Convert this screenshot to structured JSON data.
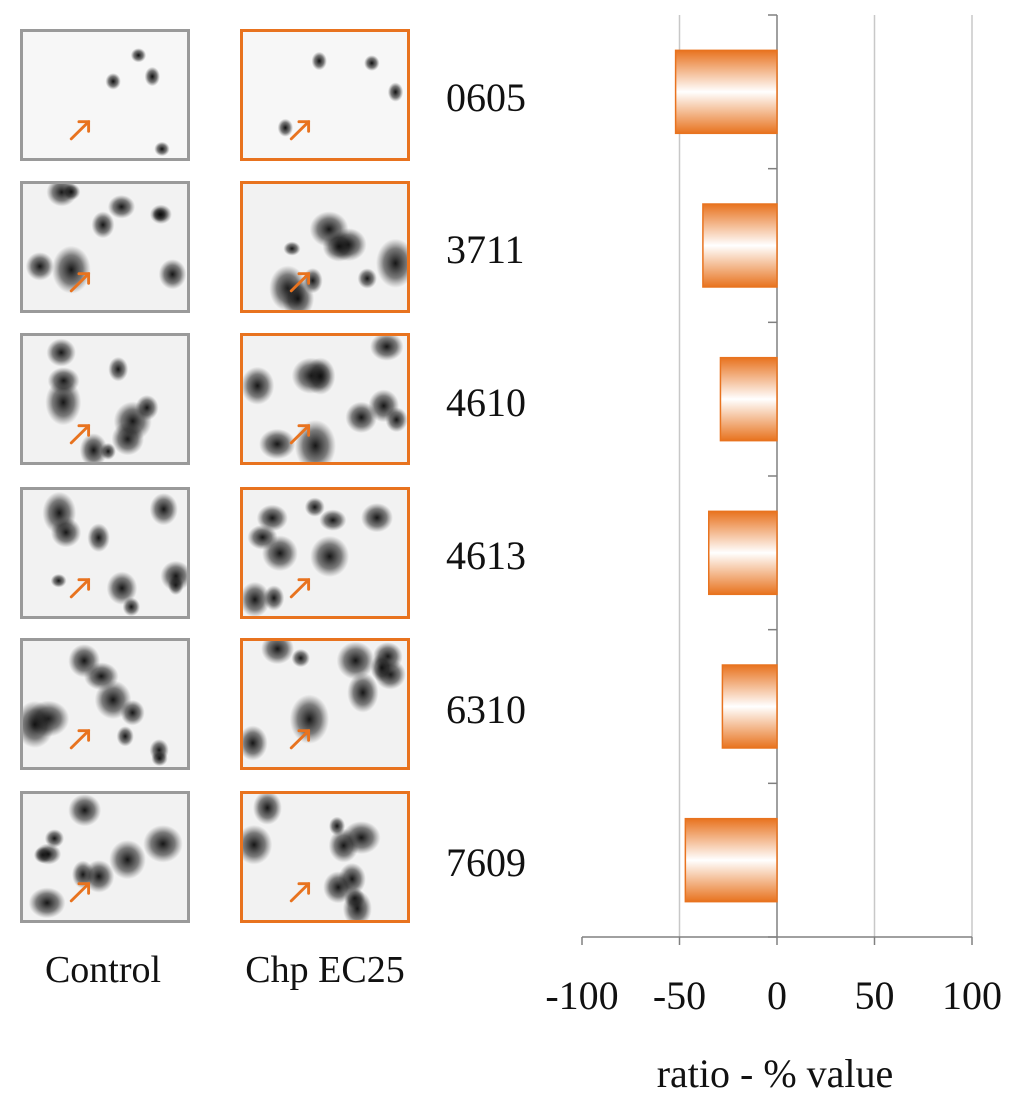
{
  "columns": {
    "control_label": "Control",
    "treated_label": "Chp EC25"
  },
  "colors": {
    "accent": "#e8731f",
    "control_border": "#9a9a9a",
    "grid": "#c8c8c8",
    "axis": "#808080"
  },
  "chart_data": {
    "type": "bar",
    "orientation": "horizontal",
    "categories": [
      "0605",
      "3711",
      "4610",
      "4613",
      "6310",
      "7609"
    ],
    "values": [
      -52,
      -38,
      -29,
      -35,
      -28,
      -47
    ],
    "xlabel": "ratio - % value",
    "ylabel": "",
    "xlim": [
      -100,
      100
    ],
    "xticks": [
      -100,
      -50,
      0,
      50,
      100
    ],
    "grid": "vertical",
    "bar_color": "#e8731f"
  }
}
